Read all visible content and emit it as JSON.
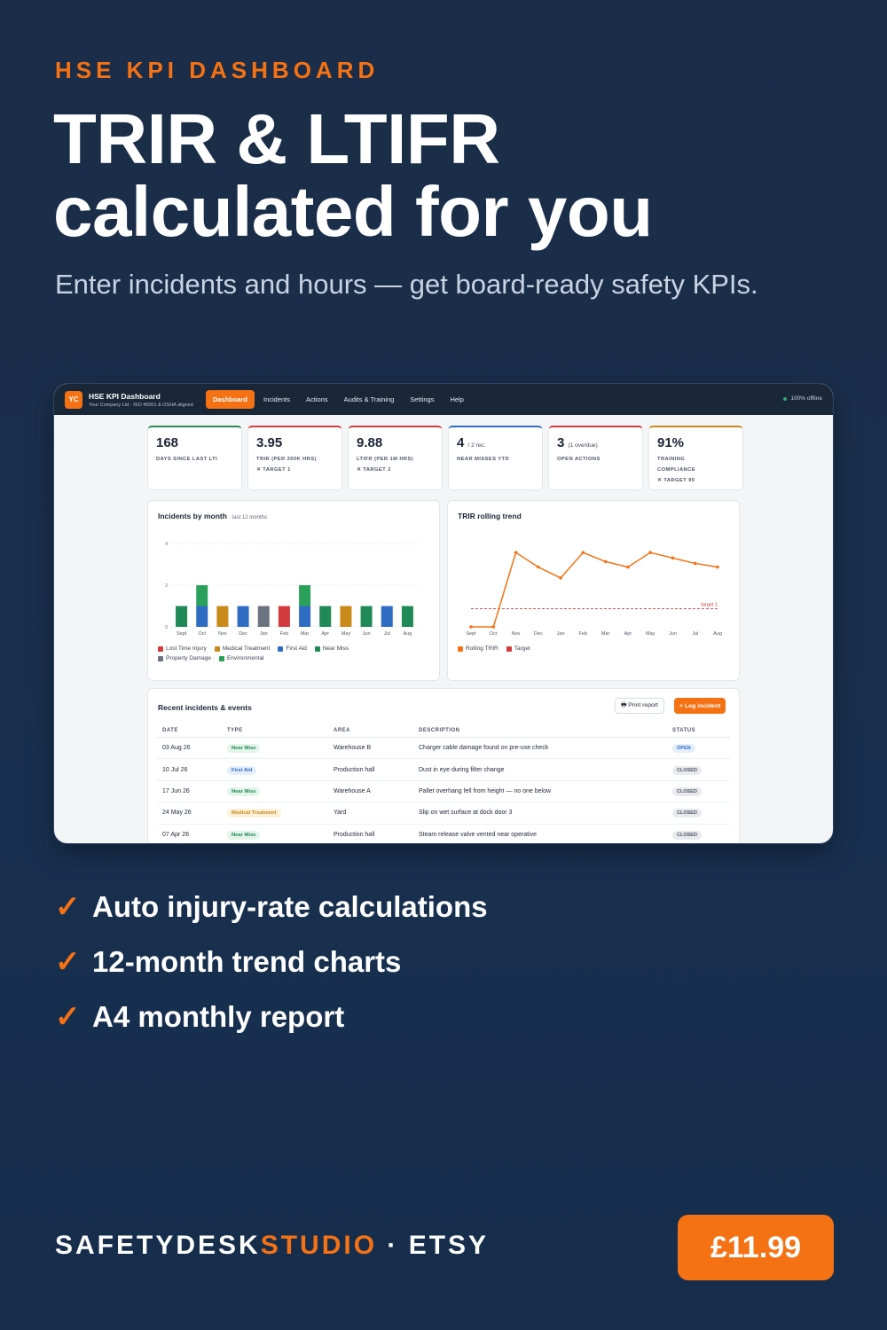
{
  "header": {
    "eyebrow": "HSE KPI DASHBOARD",
    "headline_line1": "TRIR & LTIFR",
    "headline_line2": "calculated for you",
    "subhead": "Enter incidents and hours — get board-ready safety KPIs."
  },
  "app": {
    "logo": "YC",
    "title": "HSE KPI Dashboard",
    "subtitle": "Your Company Ltd · ISO 45001 & OSHA aligned",
    "nav": [
      "Dashboard",
      "Incidents",
      "Actions",
      "Audits & Training",
      "Settings",
      "Help"
    ],
    "active_nav": "Dashboard",
    "status": "100% offline",
    "kpis": [
      {
        "value": "168",
        "suffix": "",
        "label1": "DAYS SINCE LAST LTI",
        "label2": "",
        "label3": "",
        "color": "#2a8a4f"
      },
      {
        "value": "3.95",
        "suffix": "",
        "label1": "TRIR (PER 200K HRS)",
        "label2": "✕ TARGET 1",
        "label3": "",
        "color": "#d13b3b"
      },
      {
        "value": "9.88",
        "suffix": "",
        "label1": "LTIFR (PER 1M HRS)",
        "label2": "✕ TARGET 2",
        "label3": "",
        "color": "#d13b3b"
      },
      {
        "value": "4",
        "suffix": "/ 2 rec.",
        "label1": "NEAR MISSES YTD",
        "label2": "",
        "label3": "",
        "color": "#2f6cc4"
      },
      {
        "value": "3",
        "suffix": "(1 overdue)",
        "label1": "OPEN ACTIONS",
        "label2": "",
        "label3": "",
        "color": "#d13b3b"
      },
      {
        "value": "91%",
        "suffix": "",
        "label1": "TRAINING",
        "label2": "COMPLIANCE",
        "label3": "✕ TARGET 95",
        "color": "#c98a1a"
      }
    ],
    "incidents_chart": {
      "title": "Incidents by month",
      "subtitle": "· last 12 months",
      "legend": [
        "Lost Time Injury",
        "Medical Treatment",
        "First Aid",
        "Near Miss",
        "Property Damage",
        "Environmental"
      ]
    },
    "trir_chart": {
      "title": "TRIR rolling trend",
      "legend": [
        "Rolling TRIR",
        "Target"
      ],
      "target_label": "target 1"
    },
    "table": {
      "title": "Recent incidents & events",
      "print_label": "🖶 Print report",
      "log_label": "+ Log incident",
      "headers": [
        "DATE",
        "TYPE",
        "AREA",
        "DESCRIPTION",
        "STATUS"
      ],
      "rows": [
        {
          "date": "03 Aug 26",
          "type": "Near Miss",
          "area": "Warehouse B",
          "description": "Charger cable damage found on pre-use check",
          "status": "OPEN"
        },
        {
          "date": "10 Jul 26",
          "type": "First Aid",
          "area": "Production hall",
          "description": "Dust in eye during filter change",
          "status": "CLOSED"
        },
        {
          "date": "17 Jun 26",
          "type": "Near Miss",
          "area": "Warehouse A",
          "description": "Pallet overhang fell from height — no one below",
          "status": "CLOSED"
        },
        {
          "date": "24 May 26",
          "type": "Medical Treatment",
          "area": "Yard",
          "description": "Slip on wet surface at dock door 3",
          "status": "CLOSED"
        },
        {
          "date": "07 Apr 26",
          "type": "Near Miss",
          "area": "Production hall",
          "description": "Steam release valve vented near operative",
          "status": "CLOSED"
        }
      ]
    }
  },
  "chart_data": [
    {
      "type": "bar",
      "title": "Incidents by month",
      "categories": [
        "Sept",
        "Oct",
        "Nov",
        "Dec",
        "Jan",
        "Feb",
        "Mar",
        "Apr",
        "May",
        "Jun",
        "Jul",
        "Aug"
      ],
      "ylim": [
        0,
        4
      ],
      "yticks": [
        0,
        2,
        4
      ],
      "stacked": true,
      "series": [
        {
          "name": "Lost Time Injury",
          "color": "#d13b3b",
          "values": [
            0,
            0,
            0,
            0,
            0,
            1,
            0,
            0,
            0,
            0,
            0,
            0
          ]
        },
        {
          "name": "Medical Treatment",
          "color": "#c98a1a",
          "values": [
            0,
            0,
            1,
            0,
            0,
            0,
            0,
            0,
            1,
            0,
            0,
            0
          ]
        },
        {
          "name": "First Aid",
          "color": "#2f6cc4",
          "values": [
            0,
            1,
            0,
            1,
            0,
            0,
            1,
            0,
            0,
            0,
            1,
            0
          ]
        },
        {
          "name": "Near Miss",
          "color": "#1f8a55",
          "values": [
            1,
            0,
            0,
            0,
            0,
            0,
            0,
            1,
            0,
            1,
            0,
            1
          ]
        },
        {
          "name": "Property Damage",
          "color": "#6b7380",
          "values": [
            0,
            0,
            0,
            0,
            1,
            0,
            0,
            0,
            0,
            0,
            0,
            0
          ]
        },
        {
          "name": "Environmental",
          "color": "#2aa15a",
          "values": [
            0,
            1,
            0,
            0,
            0,
            0,
            1,
            0,
            0,
            0,
            0,
            0
          ]
        }
      ]
    },
    {
      "type": "line",
      "title": "TRIR rolling trend",
      "categories": [
        "Sept",
        "Oct",
        "Nov",
        "Dec",
        "Jan",
        "Feb",
        "Mar",
        "Apr",
        "May",
        "Jun",
        "Jul",
        "Aug"
      ],
      "ylim": [
        0,
        4.5
      ],
      "series": [
        {
          "name": "Rolling TRIR",
          "color": "#f57214",
          "values": [
            0,
            0,
            4.1,
            3.3,
            2.7,
            4.1,
            3.6,
            3.3,
            4.1,
            3.8,
            3.5,
            3.3
          ]
        },
        {
          "name": "Target",
          "color": "#d13b3b",
          "values": [
            1,
            1,
            1,
            1,
            1,
            1,
            1,
            1,
            1,
            1,
            1,
            1
          ]
        }
      ]
    }
  ],
  "benefits": [
    "Auto injury-rate calculations",
    "12-month trend charts",
    "A4 monthly report"
  ],
  "footer": {
    "brand_a": "SAFETYDESK",
    "brand_b": "STUDIO",
    "brand_c": " · ETSY",
    "price": "£11.99"
  }
}
